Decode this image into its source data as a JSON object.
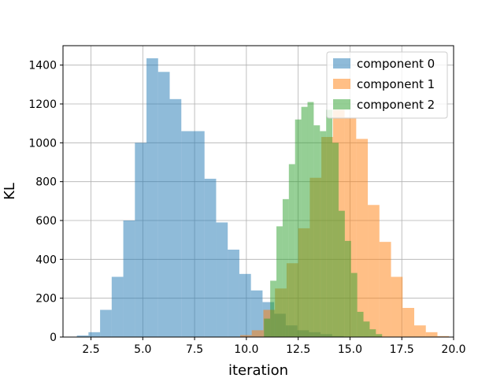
{
  "chart_data": {
    "type": "histogram",
    "title": "",
    "xlabel": "iteration",
    "ylabel": "KL",
    "xlim": [
      1.15,
      20.0
    ],
    "ylim": [
      0,
      1500
    ],
    "xticks": [
      "2.5",
      "5.0",
      "7.5",
      "10.0",
      "12.5",
      "15.0",
      "17.5",
      "20.0"
    ],
    "yticks": [
      "0",
      "200",
      "400",
      "600",
      "800",
      "1000",
      "1200",
      "1400"
    ],
    "grid": true,
    "legend_position": "top-right",
    "series": [
      {
        "name": "component 0",
        "color": "#1f77b4",
        "opacity": 0.5,
        "bins": [
          [
            1.82,
            2.38,
            8
          ],
          [
            2.38,
            2.94,
            25
          ],
          [
            2.94,
            3.5,
            140
          ],
          [
            3.5,
            4.06,
            310
          ],
          [
            4.06,
            4.62,
            600
          ],
          [
            4.62,
            5.18,
            1000
          ],
          [
            5.18,
            5.74,
            1435
          ],
          [
            5.74,
            6.3,
            1365
          ],
          [
            6.3,
            6.86,
            1225
          ],
          [
            6.86,
            7.42,
            1060
          ],
          [
            7.42,
            7.98,
            1060
          ],
          [
            7.98,
            8.54,
            815
          ],
          [
            8.54,
            9.1,
            590
          ],
          [
            9.1,
            9.66,
            450
          ],
          [
            9.66,
            10.22,
            325
          ],
          [
            10.22,
            10.78,
            240
          ],
          [
            10.78,
            11.34,
            180
          ],
          [
            11.34,
            11.9,
            120
          ],
          [
            11.9,
            12.46,
            60
          ],
          [
            12.46,
            13.02,
            35
          ],
          [
            13.02,
            13.58,
            25
          ],
          [
            13.58,
            14.14,
            15
          ],
          [
            14.14,
            14.7,
            5
          ]
        ]
      },
      {
        "name": "component 1",
        "color": "#ff7f0e",
        "opacity": 0.5,
        "bins": [
          [
            9.7,
            10.26,
            10
          ],
          [
            10.26,
            10.82,
            35
          ],
          [
            10.82,
            11.38,
            140
          ],
          [
            11.38,
            11.94,
            250
          ],
          [
            11.94,
            12.5,
            380
          ],
          [
            12.5,
            13.06,
            560
          ],
          [
            13.06,
            13.62,
            820
          ],
          [
            13.62,
            14.18,
            1030
          ],
          [
            14.18,
            14.74,
            1170
          ],
          [
            14.74,
            15.3,
            1130
          ],
          [
            15.3,
            15.86,
            1020
          ],
          [
            15.86,
            16.42,
            680
          ],
          [
            16.42,
            16.98,
            490
          ],
          [
            16.98,
            17.54,
            310
          ],
          [
            17.54,
            18.1,
            150
          ],
          [
            18.1,
            18.66,
            60
          ],
          [
            18.66,
            19.22,
            25
          ],
          [
            19.22,
            19.78,
            5
          ]
        ]
      },
      {
        "name": "component 2",
        "color": "#2ca02c",
        "opacity": 0.5,
        "bins": [
          [
            10.85,
            11.15,
            95
          ],
          [
            11.15,
            11.45,
            290
          ],
          [
            11.45,
            11.75,
            570
          ],
          [
            11.75,
            12.05,
            710
          ],
          [
            12.05,
            12.35,
            890
          ],
          [
            12.35,
            12.65,
            1120
          ],
          [
            12.65,
            12.95,
            1185
          ],
          [
            12.95,
            13.25,
            1210
          ],
          [
            13.25,
            13.55,
            1090
          ],
          [
            13.55,
            13.85,
            1060
          ],
          [
            13.85,
            14.15,
            1170
          ],
          [
            14.15,
            14.45,
            1000
          ],
          [
            14.45,
            14.75,
            650
          ],
          [
            14.75,
            15.05,
            495
          ],
          [
            15.05,
            15.35,
            330
          ],
          [
            15.35,
            15.65,
            130
          ],
          [
            15.65,
            15.95,
            80
          ],
          [
            15.95,
            16.25,
            40
          ],
          [
            16.25,
            16.55,
            15
          ]
        ]
      }
    ]
  }
}
